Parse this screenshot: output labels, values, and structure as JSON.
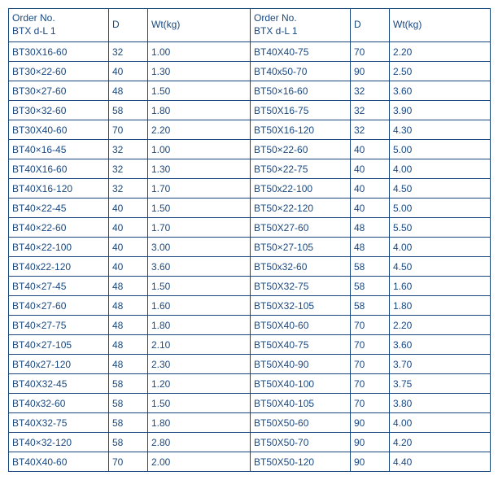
{
  "table": {
    "text_color": "#194880",
    "border_color": "#194880",
    "background_color": "#ffffff",
    "font_size_pt": 9,
    "header": {
      "order_label_line1": "Order No.",
      "order_label_line2": "BTX d-L 1",
      "d_label": "D",
      "wt_label": "Wt(kg)"
    },
    "rows": [
      {
        "l_order": "BT30X16-60",
        "l_d": "32",
        "l_wt": "1.00",
        "r_order": "BT40X40-75",
        "r_d": "70",
        "r_wt": "2.20"
      },
      {
        "l_order": "BT30×22-60",
        "l_d": "40",
        "l_wt": "1.30",
        "r_order": "BT40x50-70",
        "r_d": "90",
        "r_wt": "2.50"
      },
      {
        "l_order": "BT30×27-60",
        "l_d": "48",
        "l_wt": "1.50",
        "r_order": "BT50×16-60",
        "r_d": "32",
        "r_wt": "3.60"
      },
      {
        "l_order": "BT30×32-60",
        "l_d": "58",
        "l_wt": "1.80",
        "r_order": "BT50X16-75",
        "r_d": "32",
        "r_wt": "3.90"
      },
      {
        "l_order": "BT30X40-60",
        "l_d": "70",
        "l_wt": "2.20",
        "r_order": "BT50X16-120",
        "r_d": "32",
        "r_wt": "4.30"
      },
      {
        "l_order": "BT40×16-45",
        "l_d": "32",
        "l_wt": "1.00",
        "r_order": "BT50×22-60",
        "r_d": "40",
        "r_wt": "5.00"
      },
      {
        "l_order": "BT40X16-60",
        "l_d": "32",
        "l_wt": "1.30",
        "r_order": "BT50×22-75",
        "r_d": "40",
        "r_wt": "4.00"
      },
      {
        "l_order": "BT40X16-120",
        "l_d": "32",
        "l_wt": "1.70",
        "r_order": "BT50x22-100",
        "r_d": "40",
        "r_wt": "4.50"
      },
      {
        "l_order": "BT40×22-45",
        "l_d": "40",
        "l_wt": "1.50",
        "r_order": "BT50×22-120",
        "r_d": "40",
        "r_wt": "5.00"
      },
      {
        "l_order": "BT40×22-60",
        "l_d": "40",
        "l_wt": "1.70",
        "r_order": "BT50X27-60",
        "r_d": "48",
        "r_wt": "5.50"
      },
      {
        "l_order": "BT40×22-100",
        "l_d": "40",
        "l_wt": "3.00",
        "r_order": "BT50×27-105",
        "r_d": "48",
        "r_wt": "4.00"
      },
      {
        "l_order": "BT40x22-120",
        "l_d": "40",
        "l_wt": "3.60",
        "r_order": "BT50x32-60",
        "r_d": "58",
        "r_wt": "4.50"
      },
      {
        "l_order": "BT40×27-45",
        "l_d": "48",
        "l_wt": "1.50",
        "r_order": "BT50X32-75",
        "r_d": "58",
        "r_wt": "1.60"
      },
      {
        "l_order": "BT40×27-60",
        "l_d": "48",
        "l_wt": "1.60",
        "r_order": "BT50X32-105",
        "r_d": "58",
        "r_wt": "1.80"
      },
      {
        "l_order": "BT40×27-75",
        "l_d": "48",
        "l_wt": "1.80",
        "r_order": "BT50X40-60",
        "r_d": "70",
        "r_wt": "2.20"
      },
      {
        "l_order": "BT40×27-105",
        "l_d": "48",
        "l_wt": "2.10",
        "r_order": "BT50X40-75",
        "r_d": "70",
        "r_wt": "3.60"
      },
      {
        "l_order": "BT40x27-120",
        "l_d": "48",
        "l_wt": "2.30",
        "r_order": "BT50X40-90",
        "r_d": "70",
        "r_wt": "3.70"
      },
      {
        "l_order": "BT40X32-45",
        "l_d": "58",
        "l_wt": "1.20",
        "r_order": "BT50X40-100",
        "r_d": "70",
        "r_wt": "3.75"
      },
      {
        "l_order": "BT40x32-60",
        "l_d": "58",
        "l_wt": "1.50",
        "r_order": "BT50X40-105",
        "r_d": "70",
        "r_wt": "3.80"
      },
      {
        "l_order": "BT40X32-75",
        "l_d": "58",
        "l_wt": "1.80",
        "r_order": "BT50X50-60",
        "r_d": "90",
        "r_wt": "4.00"
      },
      {
        "l_order": "BT40×32-120",
        "l_d": "58",
        "l_wt": "2.80",
        "r_order": "BT50X50-70",
        "r_d": "90",
        "r_wt": "4.20"
      },
      {
        "l_order": "BT40X40-60",
        "l_d": "70",
        "l_wt": "2.00",
        "r_order": "BT50X50-120",
        "r_d": "90",
        "r_wt": "4.40"
      }
    ]
  }
}
